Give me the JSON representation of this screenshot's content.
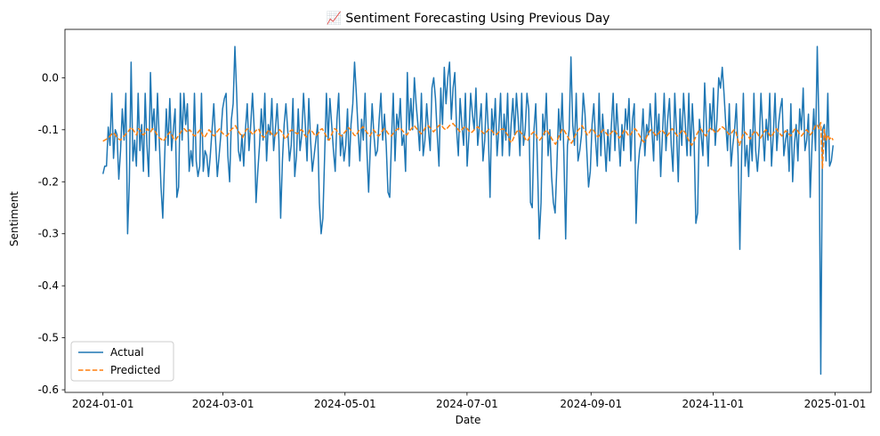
{
  "chart_data": {
    "type": "line",
    "title": "📈 Sentiment Forecasting Using Previous Day",
    "xlabel": "Date",
    "ylabel": "Sentiment",
    "xlim": [
      "2023-12-13",
      "2025-01-19"
    ],
    "ylim": [
      -0.605,
      0.093
    ],
    "x_ticks": [
      "2024-01-01",
      "2024-03-01",
      "2024-05-01",
      "2024-07-01",
      "2024-09-01",
      "2024-11-01",
      "2025-01-01"
    ],
    "y_ticks": [
      0.0,
      -0.1,
      -0.2,
      -0.3,
      -0.4,
      -0.5,
      -0.6
    ],
    "grid": false,
    "legend_position": "lower-left",
    "x_start": "2024-01-01",
    "x_end": "2024-12-31",
    "series": [
      {
        "name": "Actual",
        "color": "#1f77b4",
        "style": "solid",
        "values": [
          -0.185,
          -0.17,
          -0.17,
          -0.095,
          -0.13,
          -0.03,
          -0.155,
          -0.1,
          -0.11,
          -0.195,
          -0.14,
          -0.06,
          -0.12,
          -0.03,
          -0.3,
          -0.2,
          0.03,
          -0.16,
          -0.12,
          -0.17,
          -0.03,
          -0.14,
          -0.09,
          -0.18,
          -0.03,
          -0.13,
          -0.19,
          0.01,
          -0.1,
          -0.06,
          -0.14,
          -0.03,
          -0.12,
          -0.21,
          -0.27,
          -0.16,
          -0.06,
          -0.13,
          -0.04,
          -0.14,
          -0.1,
          -0.06,
          -0.23,
          -0.21,
          -0.03,
          -0.12,
          -0.03,
          -0.09,
          -0.05,
          -0.18,
          -0.14,
          -0.17,
          -0.03,
          -0.16,
          -0.19,
          -0.17,
          -0.03,
          -0.18,
          -0.14,
          -0.15,
          -0.19,
          -0.15,
          -0.1,
          -0.05,
          -0.12,
          -0.19,
          -0.15,
          -0.11,
          -0.06,
          -0.04,
          -0.03,
          -0.15,
          -0.2,
          -0.08,
          -0.05,
          0.06,
          -0.03,
          -0.14,
          -0.16,
          -0.11,
          -0.17,
          -0.1,
          -0.05,
          -0.14,
          -0.09,
          -0.03,
          -0.1,
          -0.24,
          -0.18,
          -0.13,
          -0.06,
          -0.12,
          -0.03,
          -0.16,
          -0.09,
          -0.11,
          -0.04,
          -0.14,
          -0.1,
          -0.05,
          -0.12,
          -0.27,
          -0.16,
          -0.09,
          -0.05,
          -0.1,
          -0.16,
          -0.13,
          -0.04,
          -0.19,
          -0.15,
          -0.06,
          -0.14,
          -0.11,
          -0.03,
          -0.09,
          -0.16,
          -0.04,
          -0.12,
          -0.18,
          -0.15,
          -0.12,
          -0.09,
          -0.24,
          -0.3,
          -0.27,
          -0.15,
          -0.03,
          -0.12,
          -0.04,
          -0.09,
          -0.14,
          -0.18,
          -0.08,
          -0.03,
          -0.15,
          -0.11,
          -0.16,
          -0.13,
          -0.06,
          -0.17,
          -0.09,
          -0.05,
          0.03,
          -0.03,
          -0.1,
          -0.16,
          -0.08,
          -0.12,
          -0.03,
          -0.14,
          -0.22,
          -0.13,
          -0.05,
          -0.11,
          -0.15,
          -0.14,
          -0.08,
          -0.03,
          -0.12,
          -0.07,
          -0.13,
          -0.22,
          -0.23,
          -0.12,
          -0.03,
          -0.16,
          -0.07,
          -0.1,
          -0.04,
          -0.13,
          -0.11,
          -0.18,
          0.01,
          -0.1,
          -0.04,
          -0.1,
          0.0,
          -0.05,
          -0.09,
          -0.14,
          -0.03,
          -0.15,
          -0.12,
          -0.05,
          -0.1,
          -0.14,
          -0.02,
          0.0,
          -0.04,
          -0.11,
          -0.17,
          -0.02,
          -0.09,
          0.02,
          -0.05,
          0.0,
          0.03,
          -0.08,
          -0.02,
          0.01,
          -0.1,
          -0.15,
          -0.04,
          -0.09,
          -0.13,
          -0.03,
          -0.17,
          -0.11,
          -0.03,
          -0.07,
          -0.1,
          -0.02,
          -0.13,
          -0.09,
          -0.05,
          -0.16,
          -0.12,
          -0.03,
          -0.1,
          -0.23,
          -0.06,
          -0.11,
          -0.04,
          -0.15,
          -0.1,
          -0.03,
          -0.15,
          -0.07,
          -0.12,
          -0.03,
          -0.15,
          -0.09,
          -0.04,
          -0.11,
          -0.03,
          -0.08,
          -0.15,
          -0.03,
          -0.13,
          -0.1,
          -0.03,
          -0.06,
          -0.24,
          -0.25,
          -0.1,
          -0.05,
          -0.17,
          -0.31,
          -0.24,
          -0.07,
          -0.11,
          -0.03,
          -0.15,
          -0.1,
          -0.19,
          -0.24,
          -0.26,
          -0.17,
          -0.06,
          -0.12,
          -0.03,
          -0.15,
          -0.31,
          -0.13,
          -0.1,
          0.04,
          -0.09,
          -0.13,
          -0.03,
          -0.16,
          -0.14,
          -0.11,
          -0.03,
          -0.07,
          -0.14,
          -0.21,
          -0.18,
          -0.09,
          -0.05,
          -0.12,
          -0.17,
          -0.03,
          -0.15,
          -0.07,
          -0.12,
          -0.18,
          -0.1,
          -0.16,
          -0.09,
          -0.03,
          -0.14,
          -0.05,
          -0.11,
          -0.17,
          -0.09,
          -0.14,
          -0.06,
          -0.1,
          -0.04,
          -0.16,
          -0.08,
          -0.05,
          -0.28,
          -0.18,
          -0.14,
          -0.12,
          -0.06,
          -0.15,
          -0.09,
          -0.11,
          -0.05,
          -0.1,
          -0.16,
          -0.03,
          -0.12,
          -0.07,
          -0.19,
          -0.11,
          -0.03,
          -0.14,
          -0.08,
          -0.04,
          -0.13,
          -0.18,
          -0.03,
          -0.1,
          -0.2,
          -0.06,
          -0.13,
          -0.03,
          -0.09,
          -0.15,
          -0.03,
          -0.15,
          -0.05,
          -0.12,
          -0.28,
          -0.26,
          -0.08,
          -0.11,
          -0.15,
          -0.01,
          -0.09,
          -0.17,
          -0.05,
          -0.1,
          -0.02,
          -0.13,
          -0.08,
          0.0,
          -0.02,
          0.02,
          -0.03,
          -0.09,
          -0.14,
          -0.05,
          -0.17,
          -0.13,
          -0.1,
          -0.05,
          -0.15,
          -0.33,
          -0.15,
          -0.03,
          -0.17,
          -0.13,
          -0.19,
          -0.1,
          -0.16,
          -0.03,
          -0.14,
          -0.18,
          -0.13,
          -0.03,
          -0.1,
          -0.16,
          -0.08,
          -0.12,
          -0.03,
          -0.17,
          -0.11,
          -0.03,
          -0.14,
          -0.09,
          -0.06,
          -0.04,
          -0.15,
          -0.12,
          -0.1,
          -0.18,
          -0.05,
          -0.2,
          -0.13,
          -0.09,
          -0.16,
          -0.06,
          -0.1,
          -0.02,
          -0.14,
          -0.12,
          -0.07,
          -0.23,
          -0.13,
          -0.06,
          -0.14,
          0.06,
          -0.1,
          -0.57,
          -0.1,
          -0.09,
          -0.16,
          -0.03,
          -0.17,
          -0.16,
          -0.13
        ]
      },
      {
        "name": "Predicted",
        "color": "#ff7f0e",
        "style": "dashed",
        "values": [
          -0.122,
          -0.12,
          -0.118,
          -0.116,
          -0.112,
          -0.108,
          -0.106,
          -0.11,
          -0.115,
          -0.118,
          -0.12,
          -0.115,
          -0.112,
          -0.108,
          -0.105,
          -0.1,
          -0.095,
          -0.1,
          -0.105,
          -0.11,
          -0.098,
          -0.1,
          -0.108,
          -0.11,
          -0.105,
          -0.098,
          -0.102,
          -0.104,
          -0.098,
          -0.1,
          -0.106,
          -0.112,
          -0.116,
          -0.118,
          -0.122,
          -0.118,
          -0.112,
          -0.108,
          -0.104,
          -0.11,
          -0.118,
          -0.12,
          -0.115,
          -0.11,
          -0.105,
          -0.1,
          -0.098,
          -0.102,
          -0.105,
          -0.1,
          -0.104,
          -0.11,
          -0.112,
          -0.108,
          -0.104,
          -0.1,
          -0.108,
          -0.115,
          -0.112,
          -0.106,
          -0.1,
          -0.104,
          -0.11,
          -0.112,
          -0.106,
          -0.102,
          -0.098,
          -0.104,
          -0.108,
          -0.11,
          -0.112,
          -0.108,
          -0.102,
          -0.098,
          -0.096,
          -0.092,
          -0.1,
          -0.105,
          -0.11,
          -0.115,
          -0.108,
          -0.1,
          -0.098,
          -0.102,
          -0.106,
          -0.11,
          -0.104,
          -0.1,
          -0.098,
          -0.106,
          -0.112,
          -0.115,
          -0.11,
          -0.104,
          -0.1,
          -0.106,
          -0.11,
          -0.112,
          -0.108,
          -0.102,
          -0.1,
          -0.104,
          -0.11,
          -0.118,
          -0.114,
          -0.108,
          -0.102,
          -0.1,
          -0.104,
          -0.106,
          -0.108,
          -0.104,
          -0.1,
          -0.102,
          -0.11,
          -0.114,
          -0.108,
          -0.1,
          -0.102,
          -0.106,
          -0.112,
          -0.11,
          -0.106,
          -0.1,
          -0.098,
          -0.104,
          -0.11,
          -0.118,
          -0.12,
          -0.112,
          -0.104,
          -0.098,
          -0.1,
          -0.106,
          -0.11,
          -0.112,
          -0.108,
          -0.104,
          -0.1,
          -0.096,
          -0.1,
          -0.104,
          -0.11,
          -0.112,
          -0.106,
          -0.1,
          -0.098,
          -0.094,
          -0.098,
          -0.104,
          -0.108,
          -0.112,
          -0.106,
          -0.1,
          -0.104,
          -0.11,
          -0.112,
          -0.108,
          -0.102,
          -0.098,
          -0.1,
          -0.106,
          -0.11,
          -0.112,
          -0.108,
          -0.104,
          -0.1,
          -0.098,
          -0.096,
          -0.1,
          -0.104,
          -0.108,
          -0.11,
          -0.104,
          -0.1,
          -0.096,
          -0.092,
          -0.096,
          -0.1,
          -0.104,
          -0.108,
          -0.104,
          -0.098,
          -0.094,
          -0.092,
          -0.096,
          -0.1,
          -0.104,
          -0.1,
          -0.096,
          -0.092,
          -0.09,
          -0.094,
          -0.098,
          -0.1,
          -0.096,
          -0.092,
          -0.09,
          -0.088,
          -0.092,
          -0.096,
          -0.1,
          -0.104,
          -0.1,
          -0.096,
          -0.094,
          -0.098,
          -0.102,
          -0.106,
          -0.104,
          -0.1,
          -0.098,
          -0.094,
          -0.098,
          -0.102,
          -0.106,
          -0.108,
          -0.104,
          -0.1,
          -0.098,
          -0.102,
          -0.106,
          -0.11,
          -0.108,
          -0.104,
          -0.1,
          -0.098,
          -0.1,
          -0.106,
          -0.11,
          -0.12,
          -0.125,
          -0.118,
          -0.11,
          -0.104,
          -0.1,
          -0.104,
          -0.108,
          -0.112,
          -0.118,
          -0.122,
          -0.116,
          -0.11,
          -0.106,
          -0.104,
          -0.11,
          -0.118,
          -0.12,
          -0.116,
          -0.11,
          -0.104,
          -0.1,
          -0.106,
          -0.112,
          -0.118,
          -0.124,
          -0.128,
          -0.12,
          -0.112,
          -0.104,
          -0.098,
          -0.102,
          -0.108,
          -0.114,
          -0.12,
          -0.126,
          -0.12,
          -0.112,
          -0.104,
          -0.1,
          -0.096,
          -0.092,
          -0.098,
          -0.104,
          -0.11,
          -0.106,
          -0.1,
          -0.098,
          -0.104,
          -0.11,
          -0.114,
          -0.11,
          -0.104,
          -0.1,
          -0.104,
          -0.108,
          -0.112,
          -0.108,
          -0.104,
          -0.1,
          -0.104,
          -0.11,
          -0.116,
          -0.112,
          -0.106,
          -0.1,
          -0.104,
          -0.11,
          -0.112,
          -0.106,
          -0.1,
          -0.098,
          -0.102,
          -0.108,
          -0.114,
          -0.12,
          -0.124,
          -0.118,
          -0.11,
          -0.104,
          -0.1,
          -0.104,
          -0.108,
          -0.112,
          -0.108,
          -0.104,
          -0.1,
          -0.104,
          -0.108,
          -0.112,
          -0.108,
          -0.102,
          -0.098,
          -0.102,
          -0.108,
          -0.112,
          -0.108,
          -0.104,
          -0.1,
          -0.104,
          -0.11,
          -0.118,
          -0.124,
          -0.13,
          -0.124,
          -0.116,
          -0.108,
          -0.102,
          -0.098,
          -0.102,
          -0.108,
          -0.112,
          -0.106,
          -0.1,
          -0.096,
          -0.1,
          -0.104,
          -0.106,
          -0.102,
          -0.098,
          -0.094,
          -0.096,
          -0.1,
          -0.104,
          -0.108,
          -0.11,
          -0.104,
          -0.1,
          -0.104,
          -0.118,
          -0.13,
          -0.12,
          -0.11,
          -0.104,
          -0.108,
          -0.112,
          -0.118,
          -0.112,
          -0.106,
          -0.102,
          -0.106,
          -0.112,
          -0.116,
          -0.11,
          -0.104,
          -0.1,
          -0.104,
          -0.11,
          -0.114,
          -0.108,
          -0.102,
          -0.098,
          -0.104,
          -0.108,
          -0.112,
          -0.108,
          -0.102,
          -0.104,
          -0.108,
          -0.112,
          -0.106,
          -0.1,
          -0.098,
          -0.102,
          -0.108,
          -0.112,
          -0.108,
          -0.104,
          -0.1,
          -0.104,
          -0.11,
          -0.106,
          -0.1,
          -0.092,
          -0.09,
          -0.098,
          -0.086,
          -0.174,
          -0.1,
          -0.12,
          -0.11,
          -0.118,
          -0.114,
          -0.12
        ]
      }
    ]
  }
}
